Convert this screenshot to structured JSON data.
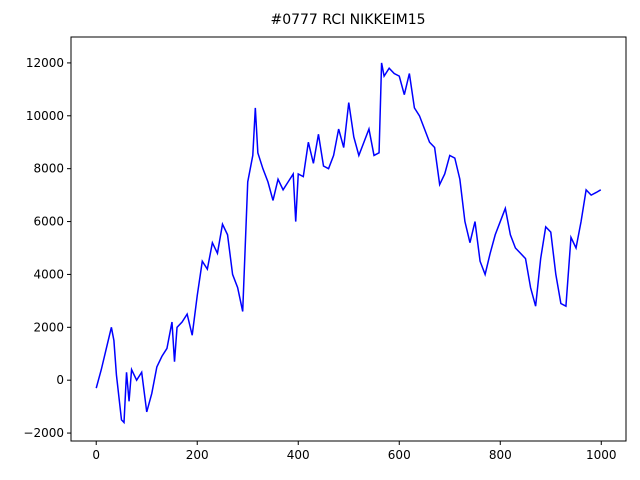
{
  "chart_data": {
    "type": "line",
    "title": "#0777 RCI NIKKEIM15",
    "x": [
      0,
      10,
      20,
      30,
      35,
      40,
      50,
      55,
      60,
      65,
      70,
      80,
      90,
      100,
      110,
      120,
      130,
      140,
      150,
      155,
      160,
      170,
      180,
      190,
      200,
      210,
      220,
      230,
      240,
      250,
      260,
      270,
      280,
      290,
      300,
      310,
      315,
      320,
      330,
      340,
      350,
      360,
      370,
      380,
      390,
      395,
      400,
      410,
      420,
      430,
      440,
      450,
      460,
      470,
      480,
      490,
      500,
      510,
      520,
      530,
      540,
      550,
      560,
      565,
      570,
      580,
      590,
      600,
      610,
      620,
      630,
      640,
      650,
      660,
      670,
      680,
      690,
      700,
      710,
      720,
      730,
      740,
      750,
      760,
      770,
      780,
      790,
      800,
      810,
      820,
      830,
      840,
      850,
      860,
      870,
      880,
      890,
      900,
      910,
      920,
      930,
      940,
      950,
      960,
      970,
      980,
      990,
      999
    ],
    "series": [
      {
        "color": "#0000ff",
        "values": [
          -300,
          400,
          1200,
          2000,
          1500,
          200,
          -1500,
          -1600,
          300,
          -800,
          400,
          0,
          300,
          -1200,
          -500,
          500,
          900,
          1200,
          2200,
          700,
          2000,
          2200,
          2500,
          1700,
          3200,
          4500,
          4200,
          5200,
          4800,
          5900,
          5500,
          4000,
          3500,
          2600,
          7500,
          8500,
          10300,
          8600,
          8000,
          7500,
          6800,
          7600,
          7200,
          7500,
          7800,
          6000,
          7800,
          7700,
          9000,
          8200,
          9300,
          8100,
          8000,
          8500,
          9500,
          8800,
          10500,
          9200,
          8500,
          9000,
          9500,
          8500,
          8600,
          12000,
          11500,
          11800,
          11600,
          11500,
          10800,
          11600,
          10300,
          10000,
          9500,
          9000,
          8800,
          7400,
          7800,
          8500,
          8400,
          7600,
          6000,
          5200,
          6000,
          4500,
          4000,
          4800,
          5500,
          6000,
          6500,
          5500,
          5000,
          4800,
          4600,
          3500,
          2800,
          4600,
          5800,
          5600,
          4000,
          2900,
          2800,
          5400,
          5000,
          6000,
          7200,
          7000,
          7100,
          7200
        ]
      }
    ],
    "xlim": [
      -49.95,
      1048.95
    ],
    "ylim": [
      -2300,
      12980
    ],
    "xticks": [
      0,
      200,
      400,
      600,
      800,
      1000
    ],
    "yticks": [
      {
        "value": -2000,
        "label": "−2000"
      },
      0,
      2000,
      4000,
      6000,
      8000,
      10000,
      12000
    ]
  }
}
